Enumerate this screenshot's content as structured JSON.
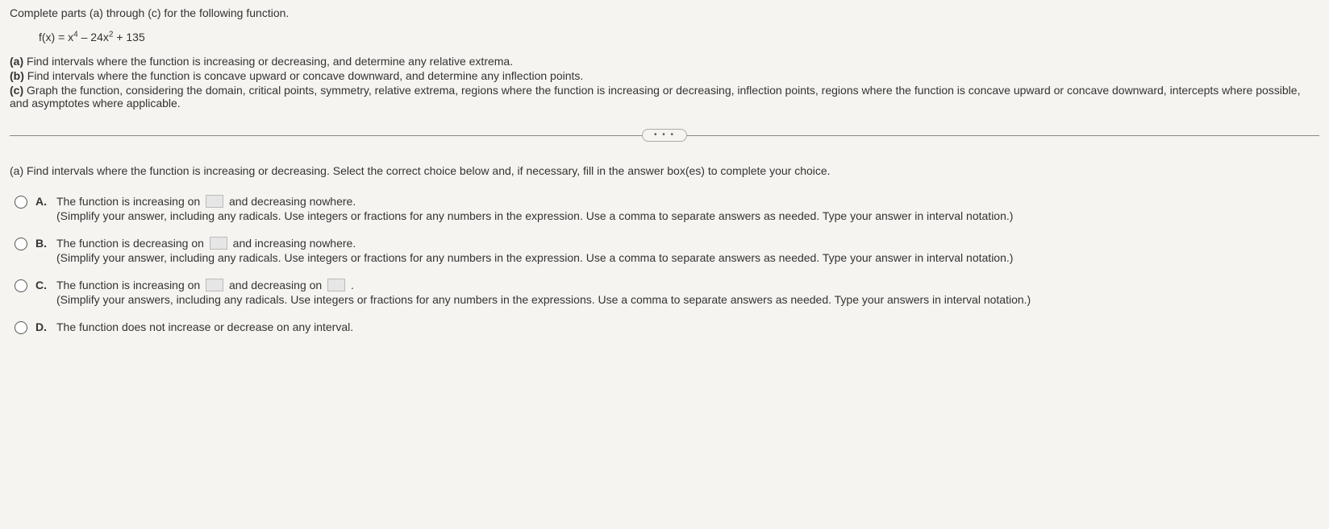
{
  "intro": "Complete parts (a) through (c) for the following function.",
  "formula": "f(x) = x⁴ – 24x² + 135",
  "parts": {
    "a": "Find intervals where the function is increasing or decreasing, and determine any relative extrema.",
    "b": "Find intervals where the function is concave upward or concave downward, and determine any inflection points.",
    "c": "Graph the function, considering the domain, critical points, symmetry, relative extrema, regions where the function is increasing or decreasing, inflection points, regions where the function is concave upward or concave downward, intercepts where possible, and asymptotes where applicable."
  },
  "ellipsis": "• • •",
  "question_a": "(a) Find intervals where the function is increasing or decreasing. Select the correct choice below and, if necessary, fill in the answer box(es) to complete your choice.",
  "choices": {
    "A": {
      "letter": "A.",
      "pre": "The function is increasing on ",
      "post": " and decreasing nowhere.",
      "hint": "(Simplify your answer, including any radicals. Use integers or fractions for any numbers in the expression. Use a comma to separate answers as needed. Type your answer in interval notation.)"
    },
    "B": {
      "letter": "B.",
      "pre": "The function is decreasing on ",
      "post": " and increasing nowhere.",
      "hint": "(Simplify your answer, including any radicals. Use integers or fractions for any numbers in the expression. Use a comma to separate answers as needed. Type your answer in interval notation.)"
    },
    "C": {
      "letter": "C.",
      "pre": "The function is increasing on ",
      "mid": " and decreasing on ",
      "post": " .",
      "hint": "(Simplify your answers, including any radicals. Use integers or fractions for any numbers in the expressions. Use a comma to separate answers as needed. Type your answers in interval notation.)"
    },
    "D": {
      "letter": "D.",
      "text": "The function does not increase or decrease on any interval."
    }
  },
  "labels": {
    "a": "(a)",
    "b": "(b)",
    "c": "(c)"
  }
}
